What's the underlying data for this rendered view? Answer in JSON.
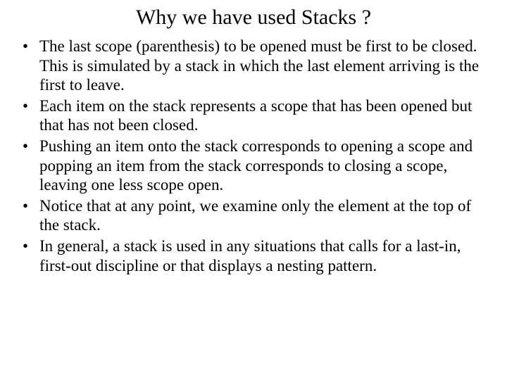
{
  "title": "Why we have used Stacks ?",
  "bullets": [
    "The last scope (parenthesis) to be opened must be first to be closed. This is simulated by a stack in which the last element arriving is the first to leave.",
    "Each item on the stack represents a scope that has been opened but that has not been closed.",
    "Pushing an item onto the stack corresponds to opening a scope and popping an item from the stack corresponds to closing a scope, leaving one less scope open.",
    "Notice that at any point, we examine only the element at the top of the stack.",
    "In general, a stack is used in any situations that calls for a last-in, first-out discipline or that displays a nesting pattern."
  ]
}
